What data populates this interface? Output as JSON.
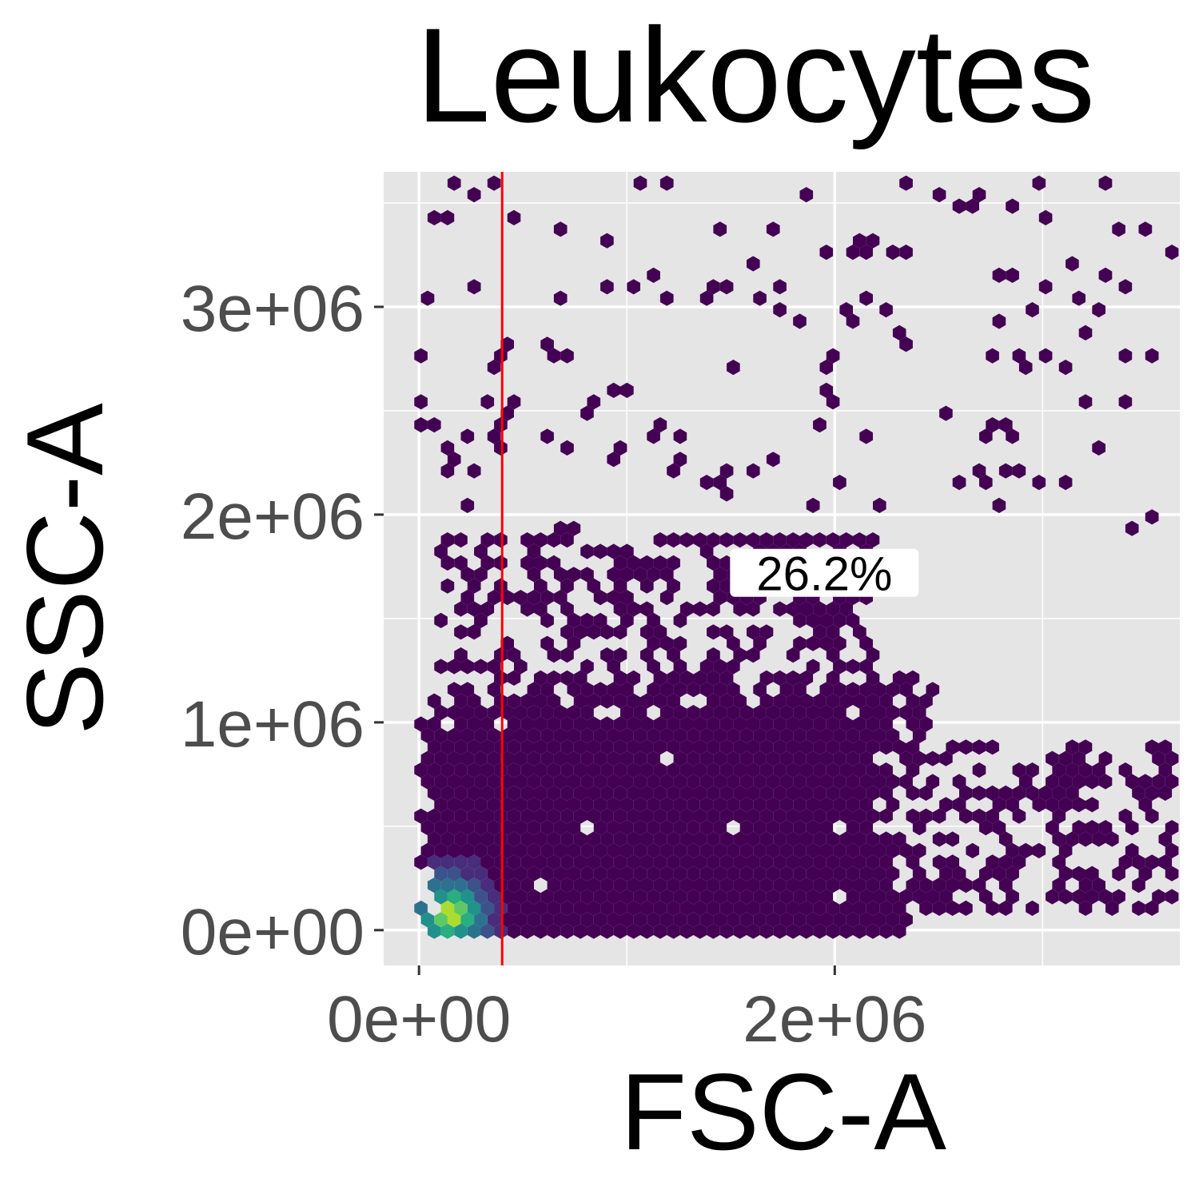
{
  "chart_data": {
    "type": "scatter",
    "subtype": "hexbin density",
    "title": "Leukocytes",
    "xlabel": "FSC-A",
    "ylabel": "SSC-A",
    "xlim": [
      -170000,
      3660000
    ],
    "ylim": [
      -170000,
      3650000
    ],
    "x_ticks": [
      {
        "value": 0,
        "label": "0e+00"
      },
      {
        "value": 2000000,
        "label": "2e+06"
      }
    ],
    "y_ticks": [
      {
        "value": 0,
        "label": "0e+00"
      },
      {
        "value": 1000000,
        "label": "1e+06"
      },
      {
        "value": 2000000,
        "label": "2e+06"
      },
      {
        "value": 3000000,
        "label": "3e+06"
      }
    ],
    "x_minor_grid": [
      1000000,
      3000000
    ],
    "y_minor_grid": [
      500000,
      1500000,
      2500000,
      3500000
    ],
    "panel_background": "#e5e5e5",
    "grid_color": "#ffffff",
    "color_scale": "viridis (low #440154 → high #fde725)",
    "gate": {
      "type": "vertical_line",
      "x": 400000,
      "color": "#ff0000"
    },
    "annotation": {
      "text": "26.2%",
      "x": 1950000,
      "y": 1720000
    },
    "density_regions": [
      {
        "x_range": [
          -50000,
          2500000
        ],
        "y_range": [
          -20000,
          1250000
        ],
        "fill": "dense"
      },
      {
        "x_range": [
          2500000,
          3650000
        ],
        "y_range": [
          100000,
          900000
        ],
        "fill": "medium"
      },
      {
        "x_range": [
          100000,
          2200000
        ],
        "y_range": [
          1250000,
          1900000
        ],
        "fill": "medium"
      },
      {
        "x_range": [
          0,
          3650000
        ],
        "y_range": [
          1900000,
          3600000
        ],
        "fill": "sparse"
      }
    ],
    "peak": {
      "x": 150000,
      "y": 80000,
      "note": "highest density cluster (yellow-green)"
    }
  }
}
